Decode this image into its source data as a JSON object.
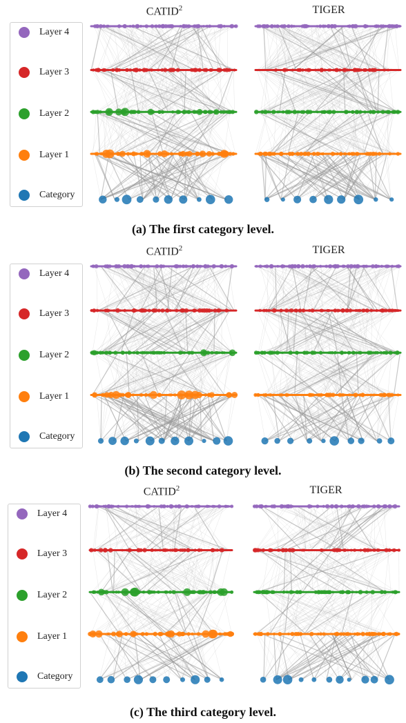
{
  "colors": {
    "layer4": "#9467bd",
    "layer3": "#d62728",
    "layer2": "#2ca02c",
    "layer1": "#ff7f0e",
    "category": "#1f77b4",
    "edges": "#999999"
  },
  "legend": [
    {
      "label": "Layer 4",
      "color_key": "layer4"
    },
    {
      "label": "Layer 3",
      "color_key": "layer3"
    },
    {
      "label": "Layer 2",
      "color_key": "layer2"
    },
    {
      "label": "Layer 1",
      "color_key": "layer1"
    },
    {
      "label": "Category",
      "color_key": "category"
    }
  ],
  "titles": {
    "left_main": "CATID",
    "left_sup": "2",
    "right": "TIGER"
  },
  "chart_data": [
    {
      "type": "network",
      "caption": "(a) The first category level.",
      "layers": [
        "Layer 4",
        "Layer 3",
        "Layer 2",
        "Layer 1",
        "Category"
      ],
      "subplots": [
        {
          "title": "CATID2",
          "category_nodes": 10
        },
        {
          "title": "TIGER",
          "category_nodes": 9
        }
      ]
    },
    {
      "type": "network",
      "caption": "(b) The second category level.",
      "layers": [
        "Layer 4",
        "Layer 3",
        "Layer 2",
        "Layer 1",
        "Category"
      ],
      "subplots": [
        {
          "title": "CATID2",
          "category_nodes": 11
        },
        {
          "title": "TIGER",
          "category_nodes": 10
        }
      ]
    },
    {
      "type": "network",
      "caption": "(c) The third category level.",
      "layers": [
        "Layer 4",
        "Layer 3",
        "Layer 2",
        "Layer 1",
        "Category"
      ],
      "subplots": [
        {
          "title": "CATID2",
          "category_nodes": 10
        },
        {
          "title": "TIGER",
          "category_nodes": 11
        }
      ]
    }
  ]
}
